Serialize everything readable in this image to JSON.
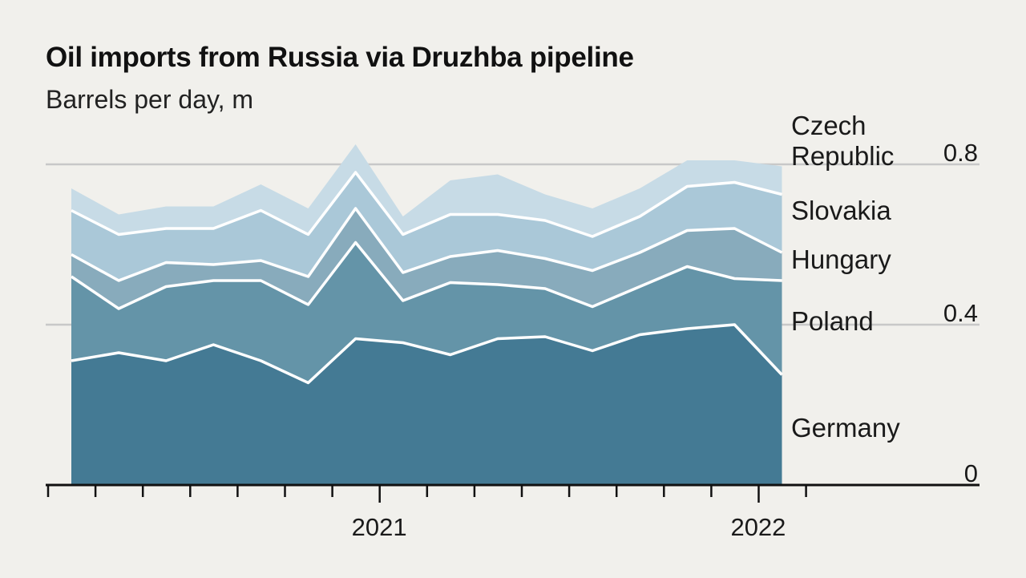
{
  "title": "Oil imports from Russia via Druzhba pipeline",
  "subtitle": "Barrels per day, m",
  "colors": {
    "background": "#f1f0ec",
    "gridline": "#c8c8c8",
    "boundary": "#ffffff",
    "axis": "#111111",
    "series": [
      "#447a94",
      "#6494a8",
      "#88abbc",
      "#aac8d8",
      "#c7dbe6"
    ]
  },
  "chart_data": {
    "type": "area",
    "stacked": true,
    "title": "Oil imports from Russia via Druzhba pipeline",
    "subtitle": "Barrels per day, m",
    "x": [
      "2020-06",
      "2020-07",
      "2020-08",
      "2020-09",
      "2020-10",
      "2020-11",
      "2020-12",
      "2021-01",
      "2021-02",
      "2021-03",
      "2021-04",
      "2021-05",
      "2021-06",
      "2021-07",
      "2021-08",
      "2021-09",
      "2021-10"
    ],
    "series": [
      {
        "name": "Germany",
        "values": [
          0.31,
          0.33,
          0.31,
          0.35,
          0.31,
          0.255,
          0.365,
          0.355,
          0.325,
          0.365,
          0.37,
          0.335,
          0.375,
          0.39,
          0.4,
          0.275,
          null
        ]
      },
      {
        "name": "Poland",
        "values": [
          0.21,
          0.11,
          0.185,
          0.16,
          0.2,
          0.195,
          0.24,
          0.105,
          0.18,
          0.135,
          0.12,
          0.11,
          0.12,
          0.155,
          0.115,
          0.235,
          null
        ]
      },
      {
        "name": "Hungary",
        "values": [
          0.055,
          0.07,
          0.06,
          0.04,
          0.05,
          0.07,
          0.085,
          0.07,
          0.065,
          0.085,
          0.075,
          0.09,
          0.085,
          0.09,
          0.125,
          0.07,
          null
        ]
      },
      {
        "name": "Slovakia",
        "values": [
          0.11,
          0.115,
          0.085,
          0.09,
          0.125,
          0.105,
          0.09,
          0.095,
          0.105,
          0.09,
          0.095,
          0.085,
          0.09,
          0.11,
          0.115,
          0.145,
          null
        ]
      },
      {
        "name": "Czech Republic",
        "values": [
          0.055,
          0.05,
          0.055,
          0.055,
          0.065,
          0.065,
          0.07,
          0.045,
          0.085,
          0.1,
          0.065,
          0.07,
          0.07,
          0.065,
          0.055,
          0.07,
          null
        ]
      }
    ],
    "ylim": [
      0,
      0.9
    ],
    "yticks": [
      0,
      0.4,
      0.8
    ],
    "ytick_labels": [
      "0",
      "0.4",
      "0.8"
    ],
    "xtick_labels": [
      {
        "label": "2021",
        "at": "2020-12"
      },
      {
        "label": "2022",
        "at": "2021-08"
      }
    ],
    "grid": true,
    "legend": "direct labels right"
  }
}
